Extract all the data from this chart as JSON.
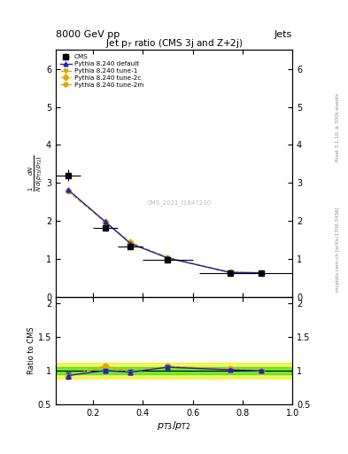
{
  "title": "Jet p$_T$ ratio (CMS 3j and Z+2j)",
  "header_left": "8000 GeV pp",
  "header_right": "Jets",
  "ylabel_main": "$\\frac{1}{N}\\frac{dN}{d(p_{T3}/p_{T2})}$",
  "ylabel_ratio": "Ratio to CMS",
  "xlabel": "$p_{T3}/p_{T2}$",
  "right_label_top": "Rivet 3.1.10, ≥ 300k events",
  "right_label_bottom": "mcplots.cern.ch [arXiv:1306.3436]",
  "watermark": "CMS_2021_I1847230",
  "cms_x": [
    0.1,
    0.25,
    0.35,
    0.5,
    0.75,
    0.875
  ],
  "cms_y": [
    3.2,
    1.82,
    1.33,
    0.97,
    0.63,
    0.63
  ],
  "cms_yerr": [
    0.15,
    0.05,
    0.04,
    0.03,
    0.02,
    0.02
  ],
  "cms_xerr": [
    0.05,
    0.05,
    0.05,
    0.1,
    0.125,
    0.125
  ],
  "default_x": [
    0.1,
    0.25,
    0.35,
    0.5,
    0.75,
    0.875
  ],
  "default_y": [
    2.82,
    1.97,
    1.4,
    1.02,
    0.64,
    0.63
  ],
  "tune1_x": [
    0.1,
    0.25,
    0.35,
    0.5,
    0.75,
    0.875
  ],
  "tune1_y": [
    2.78,
    1.96,
    1.42,
    1.03,
    0.64,
    0.63
  ],
  "tune2c_x": [
    0.1,
    0.25,
    0.35,
    0.5,
    0.75,
    0.875
  ],
  "tune2c_y": [
    2.8,
    1.97,
    1.43,
    1.03,
    0.64,
    0.63
  ],
  "tune2m_x": [
    0.1,
    0.25,
    0.35,
    0.5,
    0.75,
    0.875
  ],
  "tune2m_y": [
    2.79,
    1.97,
    1.43,
    1.03,
    0.64,
    0.63
  ],
  "ratio_default_y": [
    0.925,
    1.0,
    0.975,
    1.05,
    1.01,
    0.995
  ],
  "ratio_tune1_y": [
    0.91,
    1.06,
    0.97,
    1.06,
    1.02,
    1.0
  ],
  "ratio_tune2c_y": [
    0.915,
    1.07,
    0.98,
    1.06,
    1.02,
    1.0
  ],
  "ratio_tune2m_y": [
    0.912,
    1.07,
    0.98,
    1.06,
    1.02,
    1.0
  ],
  "ratio_err": [
    0.05,
    0.03,
    0.03,
    0.03,
    0.015,
    0.01
  ],
  "color_default": "#2222bb",
  "color_tune1": "#ddaa00",
  "color_tune2c": "#ddaa00",
  "color_tune2m": "#ddaa00",
  "color_cms": "#000000",
  "ylim_main": [
    0,
    6.5
  ],
  "ylim_ratio": [
    0.5,
    2.1
  ],
  "xlim": [
    0.05,
    1.0
  ],
  "yticks_main": [
    0,
    1,
    2,
    3,
    4,
    5,
    6
  ],
  "yticks_ratio": [
    0.5,
    1.0,
    1.5,
    2.0
  ],
  "green_band": 0.05,
  "yellow_band": 0.12
}
